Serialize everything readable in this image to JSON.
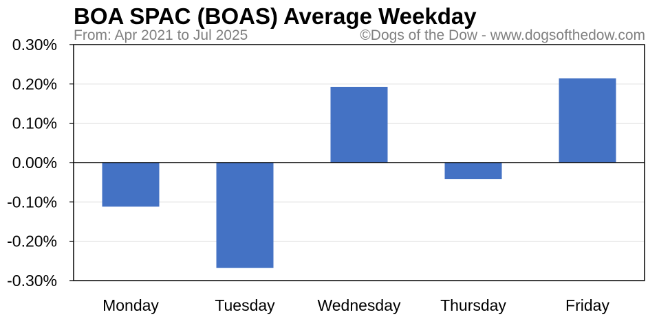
{
  "chart_data": {
    "type": "bar",
    "title": "BOA SPAC (BOAS) Average Weekday",
    "subtitle": "From: Apr 2021 to Jul 2025",
    "credit": "©Dogs of the Dow - www.dogsofthedow.com",
    "xlabel": "",
    "ylabel": "",
    "categories": [
      "Monday",
      "Tuesday",
      "Wednesday",
      "Thursday",
      "Friday"
    ],
    "values": [
      -0.112,
      -0.268,
      0.192,
      -0.042,
      0.214
    ],
    "ylim": [
      -0.3,
      0.3
    ],
    "yticks": [
      0.3,
      0.2,
      0.1,
      0.0,
      -0.1,
      -0.2,
      -0.3
    ],
    "ytick_labels": [
      "0.30%",
      "0.20%",
      "0.10%",
      "0.00%",
      "-0.10%",
      "-0.20%",
      "-0.30%"
    ],
    "unit": "%",
    "grid": true,
    "legend": "none",
    "colors": {
      "bar": "#4472C4",
      "grid": "#D9D9D9",
      "axis": "#000000",
      "subtitle": "#808080"
    }
  }
}
